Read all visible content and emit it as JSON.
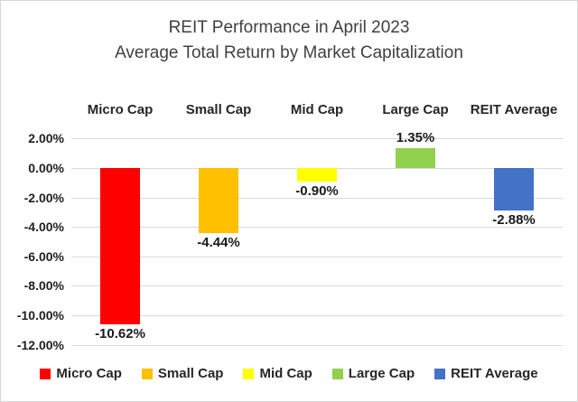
{
  "title": {
    "line1": "REIT Performance in April 2023",
    "line2": "Average Total Return by Market Capitalization"
  },
  "chart_data": {
    "type": "bar",
    "title": "REIT Performance in April 2023 — Average Total Return by Market Capitalization",
    "categories": [
      "Micro Cap",
      "Small Cap",
      "Mid Cap",
      "Large Cap",
      "REIT Average"
    ],
    "values": [
      -10.62,
      -4.44,
      -0.9,
      1.35,
      -2.88
    ],
    "value_labels": [
      "-10.62%",
      "-4.44%",
      "-0.90%",
      "1.35%",
      "-2.88%"
    ],
    "bar_colors": [
      "#FF0000",
      "#FFC000",
      "#FFFF00",
      "#92D050",
      "#4472C4"
    ],
    "xlabel": "",
    "ylabel": "",
    "ylim": [
      -12,
      2
    ],
    "y_tick_values": [
      2,
      0,
      -2,
      -4,
      -6,
      -8,
      -10,
      -12
    ],
    "y_tick_labels": [
      "2.00%",
      "0.00%",
      "-2.00%",
      "-4.00%",
      "-6.00%",
      "-8.00%",
      "-10.00%",
      "-12.00%"
    ],
    "grid": true,
    "legend_position": "bottom",
    "legend": [
      {
        "label": "Micro Cap",
        "color": "#FF0000"
      },
      {
        "label": "Small Cap",
        "color": "#FFC000"
      },
      {
        "label": "Mid Cap",
        "color": "#FFFF00"
      },
      {
        "label": "Large Cap",
        "color": "#92D050"
      },
      {
        "label": "REIT Average",
        "color": "#4472C4"
      }
    ]
  },
  "colors": {
    "gridline": "#D9D9D9",
    "title_text": "#404040",
    "label_text": "#1F1F1F",
    "border": "#D6D6D6",
    "background": "#FFFFFF"
  }
}
